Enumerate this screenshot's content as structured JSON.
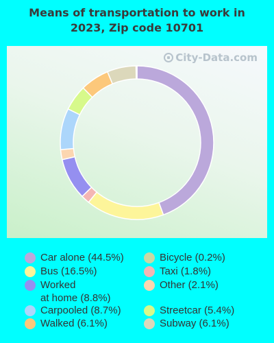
{
  "title_line1": "Means of transportation to work in",
  "title_line2": "2023, Zip code 10701",
  "watermark": "City-Data.com",
  "chart_data": {
    "type": "pie",
    "style": "donut",
    "title": "Means of transportation to work in 2023, Zip code 10701",
    "slices": [
      {
        "label": "Car alone (44.5%)",
        "value": 44.5,
        "color": "#bba8db"
      },
      {
        "label": "Bus (16.5%)",
        "value": 16.5,
        "color": "#fdf59a"
      },
      {
        "label": "Taxi (1.8%)",
        "value": 1.8,
        "color": "#f4b6b4"
      },
      {
        "label": "Worked\nat home (8.8%)",
        "value": 8.8,
        "color": "#958ff0"
      },
      {
        "label": "Other (2.1%)",
        "value": 2.1,
        "color": "#fcd6b0"
      },
      {
        "label": "Carpooled (8.7%)",
        "value": 8.7,
        "color": "#acd6fb"
      },
      {
        "label": "Streetcar (5.4%)",
        "value": 5.4,
        "color": "#d7f98b"
      },
      {
        "label": "Walked (6.1%)",
        "value": 6.1,
        "color": "#fcc87b"
      },
      {
        "label": "Subway (6.1%)",
        "value": 6.1,
        "color": "#dcd8bb"
      },
      {
        "label": "Bicycle (0.2%)",
        "value": 0.2,
        "color": "#c9d9a5"
      }
    ],
    "legend_order": [
      "Car alone (44.5%)",
      "Bicycle (0.2%)",
      "Bus (16.5%)",
      "Taxi (1.8%)",
      "Worked\nat home (8.8%)",
      "Other (2.1%)",
      "Carpooled (8.7%)",
      "Streetcar (5.4%)",
      "Walked (6.1%)",
      "Subway (6.1%)"
    ],
    "legend_placement": "bottom"
  }
}
